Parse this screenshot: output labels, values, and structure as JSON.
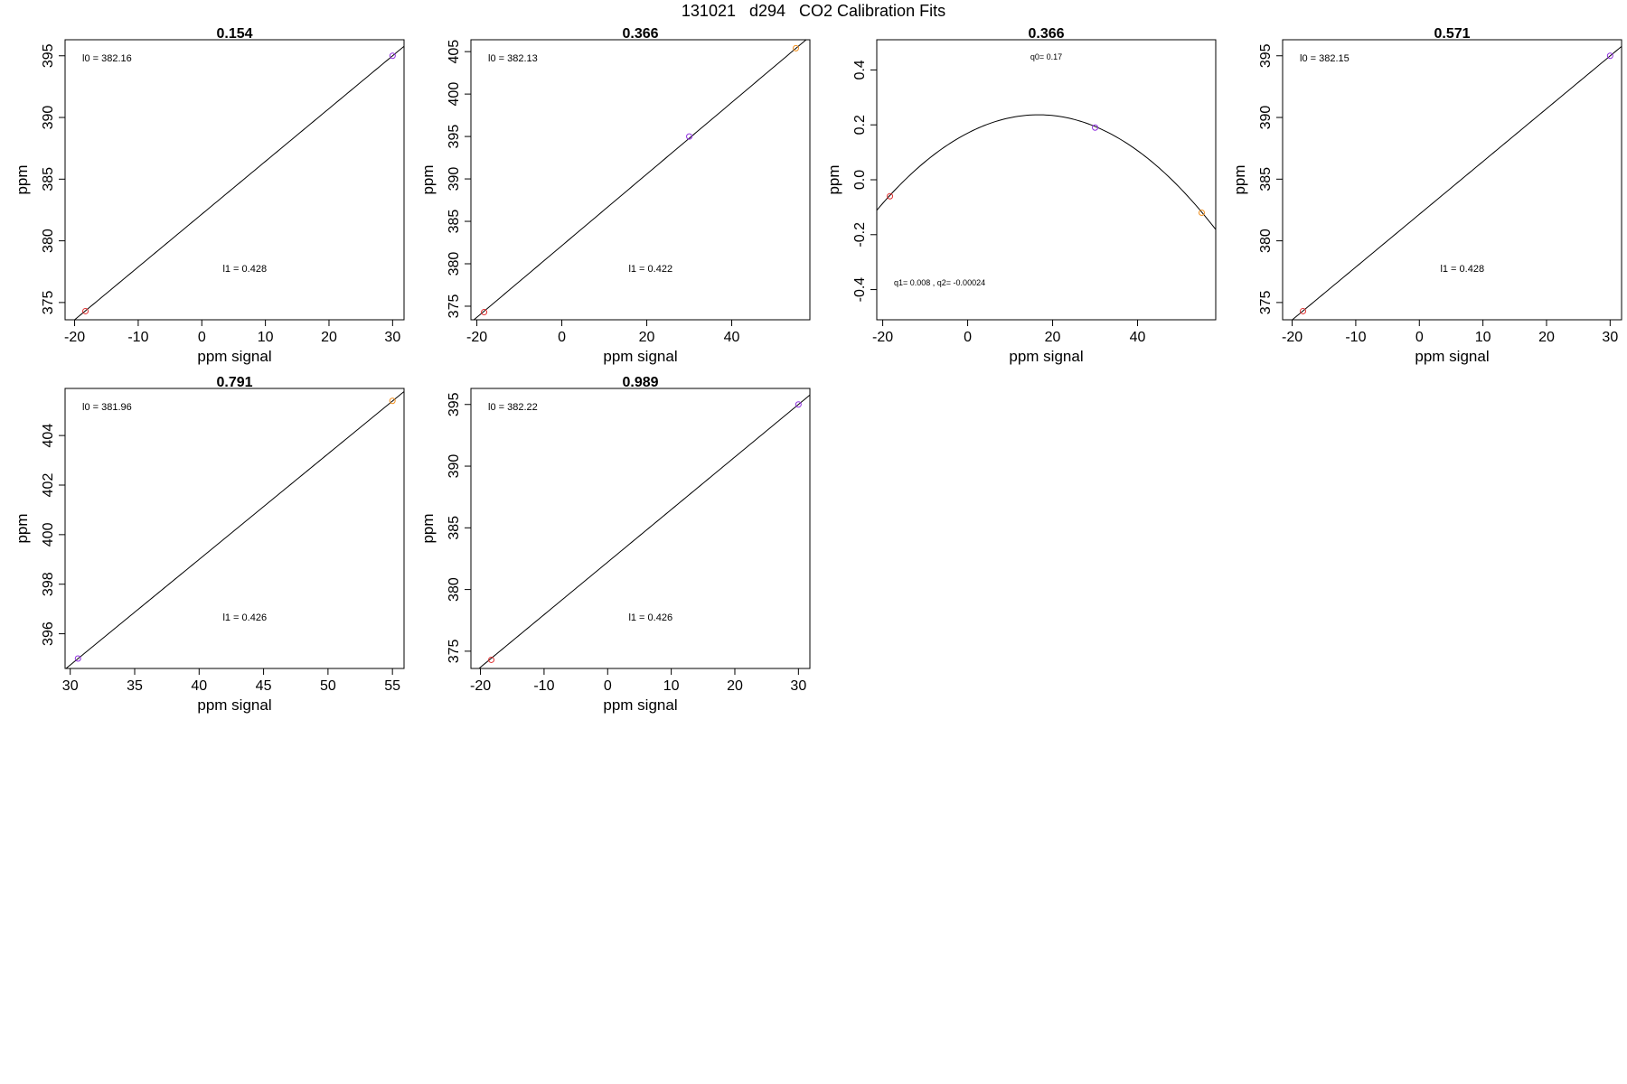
{
  "page": {
    "title": "131021   d294   CO2 Calibration Fits"
  },
  "chart_data": [
    {
      "type": "scatter",
      "title": "0.154",
      "xlabel": "ppm signal",
      "ylabel": "ppm",
      "xlim": [
        -21.5,
        31.8
      ],
      "ylim": [
        373.6,
        396.3
      ],
      "xticks": [
        -20,
        -10,
        0,
        10,
        20,
        30
      ],
      "yticks": [
        375,
        380,
        385,
        390,
        395
      ],
      "fit": {
        "kind": "linear",
        "l0": 382.16,
        "l1": 0.428
      },
      "annotations": [
        "l0 =  382.16",
        "l1 =  0.428"
      ],
      "points": [
        {
          "x": -18.3,
          "y": 374.3,
          "color": "#e03030"
        },
        {
          "x": 30.0,
          "y": 395.0,
          "color": "#9030e0"
        }
      ]
    },
    {
      "type": "scatter",
      "title": "0.366",
      "xlabel": "ppm signal",
      "ylabel": "ppm",
      "xlim": [
        -21.4,
        58.4
      ],
      "ylim": [
        373.4,
        406.4
      ],
      "xticks": [
        -20,
        0,
        20,
        40
      ],
      "yticks": [
        375,
        380,
        385,
        390,
        395,
        400,
        405
      ],
      "fit": {
        "kind": "linear",
        "l0": 382.13,
        "l1": 0.422
      },
      "annotations": [
        "l0 =  382.13",
        "l1 =  0.422"
      ],
      "points": [
        {
          "x": -18.3,
          "y": 374.3,
          "color": "#e03030"
        },
        {
          "x": 30.0,
          "y": 395.0,
          "color": "#9030e0"
        },
        {
          "x": 55.1,
          "y": 405.4,
          "color": "#f09020"
        }
      ]
    },
    {
      "type": "scatter",
      "title": "0.366",
      "xlabel": "ppm signal",
      "ylabel": "ppm",
      "xlim": [
        -21.4,
        58.4
      ],
      "ylim": [
        -0.51,
        0.51
      ],
      "xticks": [
        -20,
        0,
        20,
        40
      ],
      "yticks": [
        -0.4,
        -0.2,
        0.0,
        0.2,
        0.4
      ],
      "ytick_labels": [
        "-0.4",
        "-0.2",
        "0.0",
        "0.2",
        "0.4"
      ],
      "fit": {
        "kind": "quadratic",
        "q0": 0.17,
        "q1": 0.008,
        "q2": -0.00024
      },
      "annotations": [
        "q0= 0.17",
        "q1= 0.008 , q2= -0.00024"
      ],
      "points": [
        {
          "x": -18.3,
          "y": -0.06,
          "color": "#e03030"
        },
        {
          "x": 30.0,
          "y": 0.19,
          "color": "#9030e0"
        },
        {
          "x": 55.1,
          "y": -0.12,
          "color": "#f09020"
        }
      ]
    },
    {
      "type": "scatter",
      "title": "0.571",
      "xlabel": "ppm signal",
      "ylabel": "ppm",
      "xlim": [
        -21.5,
        31.8
      ],
      "ylim": [
        373.6,
        396.3
      ],
      "xticks": [
        -20,
        -10,
        0,
        10,
        20,
        30
      ],
      "yticks": [
        375,
        380,
        385,
        390,
        395
      ],
      "fit": {
        "kind": "linear",
        "l0": 382.15,
        "l1": 0.428
      },
      "annotations": [
        "l0 =  382.15",
        "l1 =  0.428"
      ],
      "points": [
        {
          "x": -18.3,
          "y": 374.3,
          "color": "#e03030"
        },
        {
          "x": 30.0,
          "y": 395.0,
          "color": "#9030e0"
        }
      ]
    },
    {
      "type": "scatter",
      "title": "0.791",
      "xlabel": "ppm signal",
      "ylabel": "ppm",
      "xlim": [
        29.6,
        55.9
      ],
      "ylim": [
        394.6,
        405.9
      ],
      "xticks": [
        30,
        35,
        40,
        45,
        50,
        55
      ],
      "yticks": [
        396,
        398,
        400,
        402,
        404
      ],
      "fit": {
        "kind": "linear",
        "l0": 381.96,
        "l1": 0.426
      },
      "annotations": [
        "l0 =  381.96",
        "l1 =  0.426"
      ],
      "points": [
        {
          "x": 30.6,
          "y": 395.0,
          "color": "#9030e0"
        },
        {
          "x": 55.0,
          "y": 405.4,
          "color": "#f09020"
        }
      ]
    },
    {
      "type": "scatter",
      "title": "0.989",
      "xlabel": "ppm signal",
      "ylabel": "ppm",
      "xlim": [
        -21.5,
        31.8
      ],
      "ylim": [
        373.6,
        396.3
      ],
      "xticks": [
        -20,
        -10,
        0,
        10,
        20,
        30
      ],
      "yticks": [
        375,
        380,
        385,
        390,
        395
      ],
      "fit": {
        "kind": "linear",
        "l0": 382.22,
        "l1": 0.426
      },
      "annotations": [
        "l0 =  382.22",
        "l1 =  0.426"
      ],
      "points": [
        {
          "x": -18.3,
          "y": 374.3,
          "color": "#e03030"
        },
        {
          "x": 30.0,
          "y": 395.0,
          "color": "#9030e0"
        }
      ]
    }
  ]
}
